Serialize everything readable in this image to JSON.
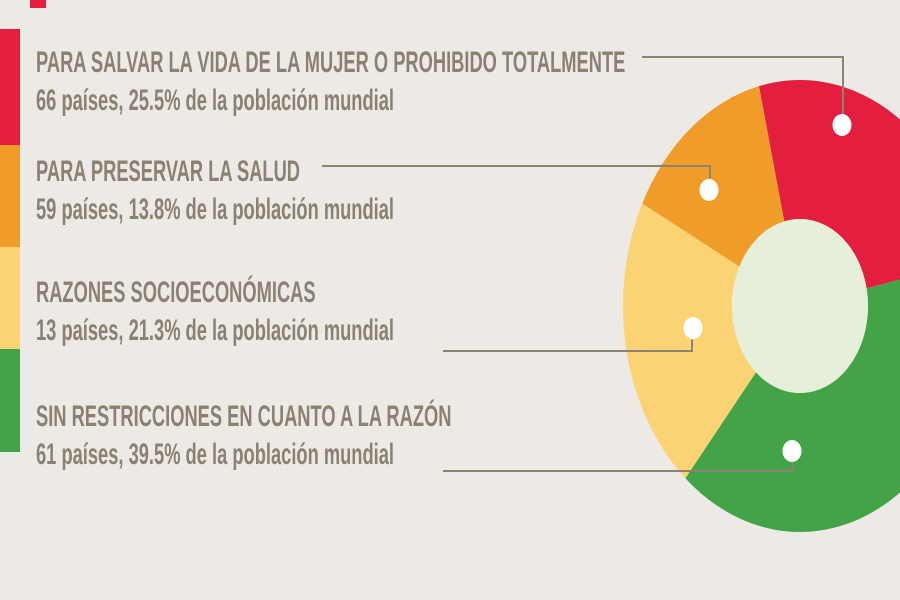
{
  "page": {
    "background_color": "#edeae6",
    "text_color": "#8a8173",
    "connector_color": "#8b8373",
    "accent_mark_color": "#e41e3f"
  },
  "chart_data": {
    "type": "pie",
    "donut": true,
    "hole_color": "#e6efd9",
    "legend_position": "left",
    "start_angle_deg": -13.4,
    "clockwise_order": [
      "prohibited",
      "no-restriction",
      "socioeconomic",
      "health"
    ],
    "slices": [
      {
        "id": "prohibited",
        "label": "PARA SALVAR LA VIDA DE LA MUJER O PROHIBIDO TOTALMENTE",
        "detail": "66 países, 25.5% de la población mundial",
        "countries": 66,
        "pct": 25.5,
        "color": "#e41e3f"
      },
      {
        "id": "health",
        "label": "PARA PRESERVAR LA SALUD",
        "detail": "59 países, 13.8% de la población mundial",
        "countries": 59,
        "pct": 13.8,
        "color": "#f09c28"
      },
      {
        "id": "socioeconomic",
        "label": "RAZONES SOCIOECONÓMICAS",
        "detail": "13 países, 21.3% de la población mundial",
        "countries": 13,
        "pct": 21.3,
        "color": "#fbd373"
      },
      {
        "id": "no-restriction",
        "label": "SIN RESTRICCIONES EN CUANTO A LA RAZÓN",
        "detail": "61 países, 39.5% de la población mundial",
        "countries": 61,
        "pct": 39.5,
        "color": "#42a447"
      }
    ]
  }
}
